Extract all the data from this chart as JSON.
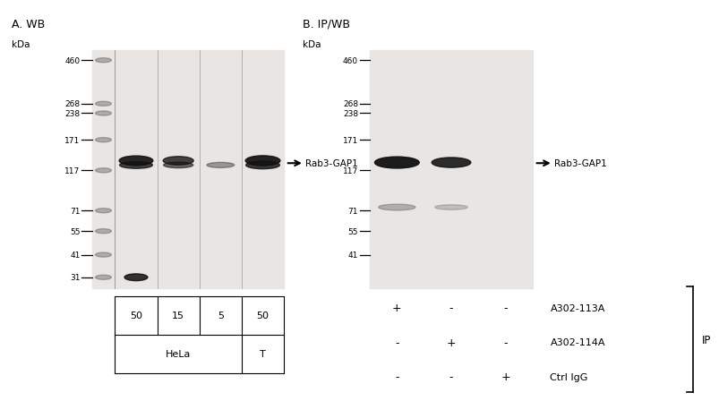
{
  "fig_width": 6.5,
  "fig_height": 4.29,
  "panel_a_title": "A. WB",
  "panel_b_title": "B. IP/WB",
  "kda_label": "kDa",
  "mw_markers_a": [
    460,
    268,
    238,
    171,
    117,
    71,
    55,
    41,
    31
  ],
  "mw_markers_b": [
    460,
    268,
    238,
    171,
    117,
    71,
    55,
    41
  ],
  "arrow_label": "Rab3-GAP1",
  "panel_a_bottom_labels": [
    "50",
    "15",
    "5",
    "50"
  ],
  "panel_a_celltypes": [
    "HeLa",
    "T"
  ],
  "row_labels": [
    "A302-113A",
    "A302-114A",
    "Ctrl IgG"
  ],
  "col_vals": [
    [
      "+",
      "-",
      "-"
    ],
    [
      "-",
      "+",
      "-"
    ],
    [
      "-",
      "-",
      "+"
    ]
  ],
  "panel_b_ip_label": "IP",
  "blot_bg": "#e8e5e2",
  "page_bg": "#ffffff",
  "band_dark": "#111111",
  "band_mid": "#2a2a2a",
  "band_light": "#555555"
}
